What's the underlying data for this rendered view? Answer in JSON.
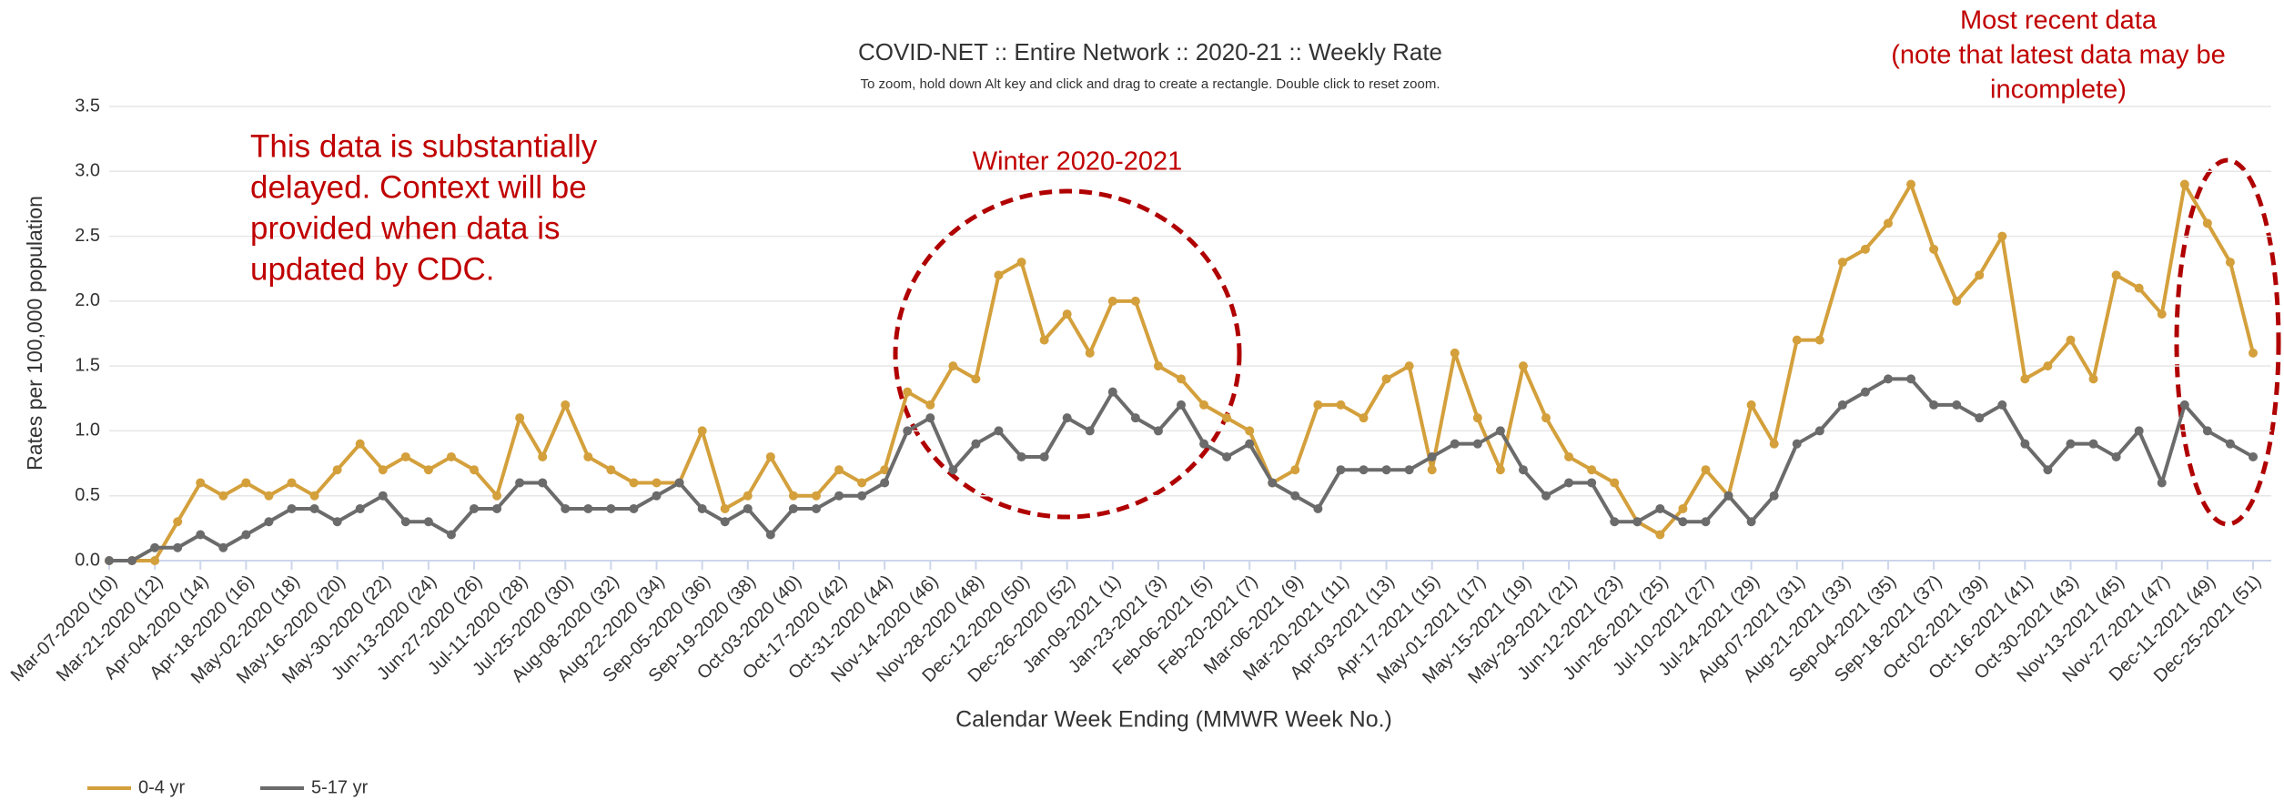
{
  "chart_data": {
    "type": "line",
    "title": "COVID-NET :: Entire Network :: 2020-21 :: Weekly Rate",
    "subtitle": "To zoom, hold down Alt key and click and drag to create a rectangle. Double click to reset zoom.",
    "xlabel": "Calendar Week Ending (MMWR Week No.)",
    "ylabel": "Rates per 100,000 population",
    "annotations": {
      "left_note": [
        "This data is substantially",
        "delayed. Context will be",
        "provided when data is",
        "updated by CDC."
      ],
      "winter": "Winter 2020-2021",
      "recent": [
        "Most recent data",
        "(note that latest data may be",
        "incomplete)"
      ]
    },
    "categories": [
      "Mar-07-2020 (10)",
      null,
      "Mar-21-2020 (12)",
      null,
      "Apr-04-2020 (14)",
      null,
      "Apr-18-2020 (16)",
      null,
      "May-02-2020 (18)",
      null,
      "May-16-2020 (20)",
      null,
      "May-30-2020 (22)",
      null,
      "Jun-13-2020 (24)",
      null,
      "Jun-27-2020 (26)",
      null,
      "Jul-11-2020 (28)",
      null,
      "Jul-25-2020 (30)",
      null,
      "Aug-08-2020 (32)",
      null,
      "Aug-22-2020 (34)",
      null,
      "Sep-05-2020 (36)",
      null,
      "Sep-19-2020 (38)",
      null,
      "Oct-03-2020 (40)",
      null,
      "Oct-17-2020 (42)",
      null,
      "Oct-31-2020 (44)",
      null,
      "Nov-14-2020 (46)",
      null,
      "Nov-28-2020 (48)",
      null,
      "Dec-12-2020 (50)",
      null,
      "Dec-26-2020 (52)",
      null,
      "Jan-09-2021 (1)",
      null,
      "Jan-23-2021 (3)",
      null,
      "Feb-06-2021 (5)",
      null,
      "Feb-20-2021 (7)",
      null,
      "Mar-06-2021 (9)",
      null,
      "Mar-20-2021 (11)",
      null,
      "Apr-03-2021 (13)",
      null,
      "Apr-17-2021 (15)",
      null,
      "May-01-2021 (17)",
      null,
      "May-15-2021 (19)",
      null,
      "May-29-2021 (21)",
      null,
      "Jun-12-2021 (23)",
      null,
      "Jun-26-2021 (25)",
      null,
      "Jul-10-2021 (27)",
      null,
      "Jul-24-2021 (29)",
      null,
      "Aug-07-2021 (31)",
      null,
      "Aug-21-2021 (33)",
      null,
      "Sep-04-2021 (35)",
      null,
      "Sep-18-2021 (37)",
      null,
      "Oct-02-2021 (39)",
      null,
      "Oct-16-2021 (41)",
      null,
      "Oct-30-2021 (43)",
      null,
      "Nov-13-2021 (45)",
      null,
      "Nov-27-2021 (47)",
      null,
      "Dec-11-2021 (49)",
      null,
      "Dec-25-2021 (51)"
    ],
    "series": [
      {
        "name": "0-4 yr",
        "color": "#d4a03c",
        "values": [
          0,
          0,
          0,
          0.3,
          0.6,
          0.5,
          0.6,
          0.5,
          0.6,
          0.5,
          0.7,
          0.9,
          0.7,
          0.8,
          0.7,
          0.8,
          0.7,
          0.5,
          1.1,
          0.8,
          1.2,
          0.8,
          0.7,
          0.6,
          0.6,
          0.6,
          1.0,
          0.4,
          0.5,
          0.8,
          0.5,
          0.5,
          0.7,
          0.6,
          0.7,
          1.3,
          1.2,
          1.5,
          1.4,
          2.2,
          2.3,
          1.7,
          1.9,
          1.6,
          2.0,
          2.0,
          1.5,
          1.4,
          1.2,
          1.1,
          1.0,
          0.6,
          0.7,
          1.2,
          1.2,
          1.1,
          1.4,
          1.5,
          0.7,
          1.6,
          1.1,
          0.7,
          1.5,
          1.1,
          0.8,
          0.7,
          0.6,
          0.3,
          0.2,
          0.4,
          0.7,
          0.5,
          1.2,
          0.9,
          1.7,
          1.7,
          2.3,
          2.4,
          2.6,
          2.9,
          2.4,
          2.0,
          2.2,
          2.5,
          1.4,
          1.5,
          1.7,
          1.4,
          2.2,
          2.1,
          1.9,
          2.9,
          2.6,
          2.3,
          1.6
        ]
      },
      {
        "name": "5-17 yr",
        "color": "#6b6b6b",
        "values": [
          0,
          0,
          0.1,
          0.1,
          0.2,
          0.1,
          0.2,
          0.3,
          0.4,
          0.4,
          0.3,
          0.4,
          0.5,
          0.3,
          0.3,
          0.2,
          0.4,
          0.4,
          0.6,
          0.6,
          0.4,
          0.4,
          0.4,
          0.4,
          0.5,
          0.6,
          0.4,
          0.3,
          0.4,
          0.2,
          0.4,
          0.4,
          0.5,
          0.5,
          0.6,
          1.0,
          1.1,
          0.7,
          0.9,
          1.0,
          0.8,
          0.8,
          1.1,
          1.0,
          1.3,
          1.1,
          1.0,
          1.2,
          0.9,
          0.8,
          0.9,
          0.6,
          0.5,
          0.4,
          0.7,
          0.7,
          0.7,
          0.7,
          0.8,
          0.9,
          0.9,
          1.0,
          0.7,
          0.5,
          0.6,
          0.6,
          0.3,
          0.3,
          0.4,
          0.3,
          0.3,
          0.5,
          0.3,
          0.5,
          0.9,
          1.0,
          1.2,
          1.3,
          1.4,
          1.4,
          1.2,
          1.2,
          1.1,
          1.2,
          0.9,
          0.7,
          0.9,
          0.9,
          0.8,
          1.0,
          0.6,
          1.2,
          1.0,
          0.9,
          0.8
        ]
      }
    ],
    "ylim": [
      0,
      3.5
    ],
    "yticks": [
      {
        "value": 0,
        "label": "0.0"
      },
      0.5,
      {
        "value": 1,
        "label": "1.0"
      },
      1.5,
      {
        "value": 2,
        "label": "2.0"
      },
      2.5,
      {
        "value": 3,
        "label": "3.0"
      },
      3.5
    ],
    "grid": true,
    "legend": "bottom-left",
    "annotation_color": "#c00000"
  }
}
